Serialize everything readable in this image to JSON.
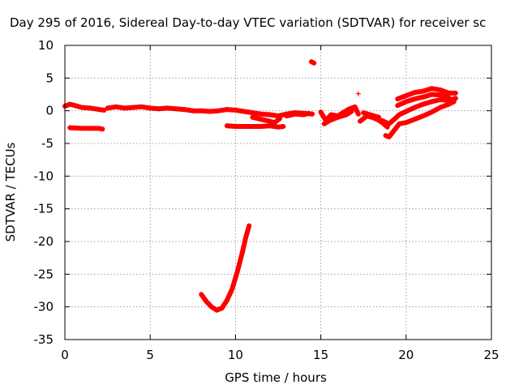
{
  "chart_data": {
    "type": "scatter",
    "title": "Day 295 of 2016, Sidereal Day-to-day VTEC variation (SDTVAR) for receiver sc",
    "xlabel": "GPS time / hours",
    "ylabel": "SDTVAR / TECUs",
    "xlim": [
      0,
      25
    ],
    "ylim": [
      -35,
      10
    ],
    "xticks": [
      0,
      5,
      10,
      15,
      20,
      25
    ],
    "yticks": [
      10,
      5,
      0,
      -5,
      -10,
      -15,
      -20,
      -25,
      -30,
      -35
    ],
    "grid": true,
    "marker": "plus",
    "color": "#ff0000",
    "series": [
      {
        "segments": [
          [
            [
              0.0,
              0.7
            ],
            [
              0.3,
              1.0
            ],
            [
              0.6,
              0.8
            ],
            [
              1.0,
              0.5
            ],
            [
              1.5,
              0.4
            ],
            [
              2.0,
              0.2
            ],
            [
              2.3,
              0.1
            ]
          ],
          [
            [
              2.5,
              0.4
            ],
            [
              3.0,
              0.6
            ],
            [
              3.5,
              0.4
            ],
            [
              4.0,
              0.5
            ],
            [
              4.5,
              0.6
            ],
            [
              5.0,
              0.4
            ],
            [
              5.5,
              0.3
            ],
            [
              6.0,
              0.4
            ],
            [
              6.5,
              0.3
            ],
            [
              7.0,
              0.2
            ],
            [
              7.5,
              0.0
            ],
            [
              8.0,
              0.0
            ],
            [
              8.5,
              -0.1
            ],
            [
              9.0,
              0.0
            ],
            [
              9.5,
              0.2
            ],
            [
              10.0,
              0.1
            ],
            [
              10.5,
              -0.1
            ],
            [
              11.0,
              -0.3
            ],
            [
              11.5,
              -0.5
            ],
            [
              12.0,
              -0.6
            ],
            [
              12.5,
              -0.8
            ],
            [
              13.0,
              -0.5
            ],
            [
              13.5,
              -0.3
            ],
            [
              14.0,
              -0.4
            ],
            [
              14.5,
              -0.5
            ]
          ],
          [
            [
              0.3,
              -2.6
            ],
            [
              1.0,
              -2.7
            ],
            [
              1.5,
              -2.7
            ],
            [
              2.0,
              -2.7
            ],
            [
              2.2,
              -2.8
            ]
          ],
          [
            [
              9.5,
              -2.3
            ],
            [
              10.0,
              -2.4
            ],
            [
              10.5,
              -2.4
            ],
            [
              11.0,
              -2.4
            ],
            [
              11.5,
              -2.4
            ],
            [
              12.0,
              -2.3
            ],
            [
              12.5,
              -2.5
            ],
            [
              12.8,
              -2.4
            ]
          ],
          [
            [
              11.0,
              -1.0
            ],
            [
              11.5,
              -1.3
            ],
            [
              12.0,
              -1.6
            ],
            [
              12.3,
              -1.8
            ],
            [
              12.6,
              -1.2
            ]
          ],
          [
            [
              13.0,
              -0.8
            ],
            [
              13.5,
              -0.5
            ],
            [
              14.0,
              -0.6
            ],
            [
              14.3,
              -0.4
            ]
          ],
          [
            [
              14.45,
              7.5
            ],
            [
              14.6,
              7.3
            ]
          ],
          [
            [
              15.0,
              -0.2
            ],
            [
              15.3,
              -1.5
            ],
            [
              15.6,
              -0.6
            ],
            [
              16.0,
              -0.8
            ],
            [
              16.3,
              -0.3
            ],
            [
              16.6,
              0.2
            ],
            [
              17.0,
              0.6
            ],
            [
              17.2,
              -0.5
            ]
          ],
          [
            [
              15.2,
              -2.0
            ],
            [
              15.5,
              -1.5
            ],
            [
              16.0,
              -1.0
            ],
            [
              16.5,
              -0.6
            ],
            [
              16.8,
              -0.1
            ]
          ],
          [
            [
              17.2,
              2.6
            ]
          ],
          [
            [
              17.3,
              -1.6
            ],
            [
              17.7,
              -0.8
            ],
            [
              18.0,
              -1.0
            ],
            [
              18.3,
              -1.3
            ],
            [
              18.6,
              -1.8
            ],
            [
              18.9,
              -2.5
            ]
          ],
          [
            [
              17.5,
              -0.3
            ],
            [
              18.0,
              -0.7
            ],
            [
              18.4,
              -1.0
            ]
          ],
          [
            [
              18.8,
              -3.8
            ],
            [
              19.0,
              -4.0
            ],
            [
              19.3,
              -3.0
            ],
            [
              19.6,
              -2.0
            ],
            [
              20.0,
              -1.8
            ],
            [
              20.5,
              -1.3
            ],
            [
              21.0,
              -0.8
            ],
            [
              21.5,
              -0.2
            ],
            [
              22.0,
              0.5
            ],
            [
              22.5,
              1.0
            ],
            [
              22.8,
              1.4
            ]
          ],
          [
            [
              18.6,
              -1.5
            ],
            [
              19.0,
              -2.0
            ],
            [
              19.3,
              -1.3
            ],
            [
              19.6,
              -0.6
            ],
            [
              20.0,
              -0.1
            ],
            [
              20.5,
              0.5
            ],
            [
              21.0,
              1.0
            ],
            [
              21.5,
              1.4
            ],
            [
              22.0,
              1.7
            ],
            [
              22.5,
              1.6
            ],
            [
              22.9,
              1.9
            ]
          ],
          [
            [
              19.5,
              1.8
            ],
            [
              20.0,
              2.3
            ],
            [
              20.5,
              2.8
            ],
            [
              21.0,
              3.0
            ],
            [
              21.5,
              3.4
            ],
            [
              22.0,
              3.2
            ],
            [
              22.5,
              2.7
            ],
            [
              22.9,
              2.7
            ]
          ],
          [
            [
              19.5,
              0.8
            ],
            [
              20.0,
              1.4
            ],
            [
              20.5,
              1.8
            ],
            [
              21.0,
              2.1
            ],
            [
              21.5,
              2.5
            ],
            [
              22.0,
              2.4
            ],
            [
              22.5,
              2.0
            ]
          ],
          [
            [
              8.0,
              -28.1
            ],
            [
              8.3,
              -29.2
            ],
            [
              8.6,
              -30.0
            ],
            [
              8.9,
              -30.5
            ],
            [
              9.2,
              -30.2
            ],
            [
              9.5,
              -29.0
            ],
            [
              9.8,
              -27.3
            ],
            [
              10.1,
              -24.7
            ],
            [
              10.4,
              -21.7
            ],
            [
              10.6,
              -19.4
            ],
            [
              10.8,
              -17.6
            ]
          ]
        ]
      }
    ]
  }
}
